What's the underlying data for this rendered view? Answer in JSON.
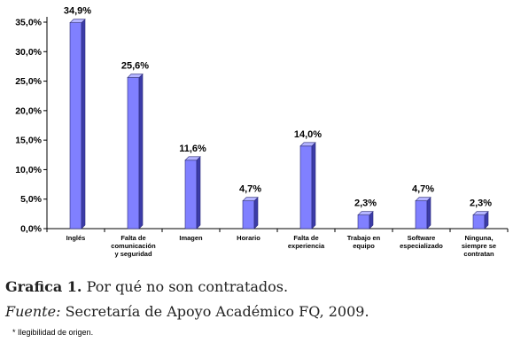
{
  "chart_data": {
    "type": "bar",
    "categories": [
      [
        "Inglés"
      ],
      [
        "Falta de",
        "comunicación",
        "y seguridad"
      ],
      [
        "Imagen"
      ],
      [
        "Horario"
      ],
      [
        "Falta de",
        "experiencia"
      ],
      [
        "Trabajo en",
        "equipo"
      ],
      [
        "Software",
        "especializado"
      ],
      [
        "Ninguna,",
        "siempre se",
        "contratan"
      ]
    ],
    "values": [
      34.9,
      25.6,
      11.6,
      4.7,
      14.0,
      2.3,
      4.7,
      2.3
    ],
    "value_labels": [
      "34,9%",
      "25,6%",
      "11,6%",
      "4,7%",
      "14,0%",
      "2,3%",
      "4,7%",
      "2,3%"
    ],
    "ylim": [
      0,
      35
    ],
    "yticks": [
      0,
      5,
      10,
      15,
      20,
      25,
      30,
      35
    ],
    "ytick_labels": [
      "0,0%",
      "5,0%",
      "10,0%",
      "15,0%",
      "20,0%",
      "25,0%",
      "30,0%",
      "35,0%"
    ],
    "grid": false,
    "colors": {
      "bar_front": "#8080ff",
      "bar_side": "#3c3ca8",
      "bar_top": "#b4b4ff"
    }
  },
  "caption": {
    "label": "Grafica 1.",
    "text": "Por qué no son contratados.",
    "source_label": "Fuente:",
    "source_text": "Secretaría de Apoyo Académico FQ, 2009."
  },
  "footnote": "* Ilegibilidad de origen."
}
